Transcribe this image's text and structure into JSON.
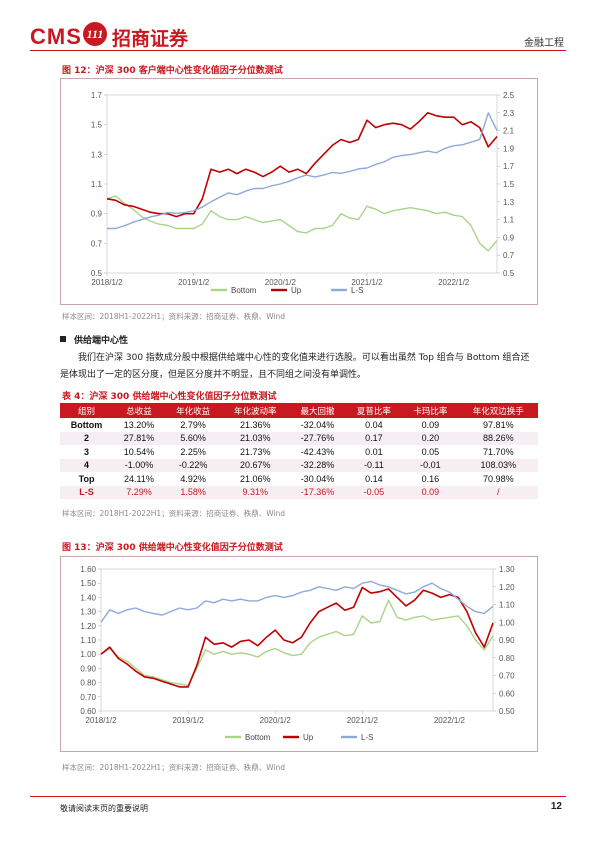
{
  "header": {
    "logo_cms": "CMS",
    "logo_seal": "111",
    "logo_cn": "招商证券",
    "right": "金融工程"
  },
  "fig12": {
    "title": "图 12：沪深 300 客户端中心性变化值因子分位数测试",
    "source": "样本区间：2018H1-2022H1；资料来源：招商证券、秩鼎、Wind"
  },
  "section": {
    "heading": "供给端中心性",
    "paragraph": "我们在沪深 300 指数成分股中根据供给端中心性的变化值来进行选股。可以看出虽然 Top 组合与 Bottom 组合还是体现出了一定的区分度，但是区分度并不明显，且不同组之间没有单调性。"
  },
  "table4": {
    "title": "表 4：沪深 300 供给端中心性变化值因子分位数测试",
    "headers": [
      "组别",
      "总收益",
      "年化收益",
      "年化波动率",
      "最大回撤",
      "夏普比率",
      "卡玛比率",
      "年化双边换手"
    ],
    "rows": [
      [
        "Bottom",
        "13.20%",
        "2.79%",
        "21.36%",
        "-32.04%",
        "0.04",
        "0.09",
        "97.81%"
      ],
      [
        "2",
        "27.81%",
        "5.60%",
        "21.03%",
        "-27.76%",
        "0.17",
        "0.20",
        "88.26%"
      ],
      [
        "3",
        "10.54%",
        "2.25%",
        "21.73%",
        "-42.43%",
        "0.01",
        "0.05",
        "71.70%"
      ],
      [
        "4",
        "-1.00%",
        "-0.22%",
        "20.67%",
        "-32.28%",
        "-0.11",
        "-0.01",
        "108.03%"
      ],
      [
        "Top",
        "24.11%",
        "4.92%",
        "21.06%",
        "-30.04%",
        "0.14",
        "0.16",
        "70.98%"
      ],
      [
        "L-S",
        "7.29%",
        "1.58%",
        "9.31%",
        "-17.36%",
        "-0.05",
        "0.09",
        "/"
      ]
    ],
    "source": "样本区间：2018H1-2022H1；资料来源：招商证券、秩鼎、Wind"
  },
  "fig13": {
    "title": "图 13：沪深 300 供给端中心性变化值因子分位数测试",
    "source": "样本区间：2018H1-2022H1；资料来源：招商证券、秩鼎、Wind"
  },
  "footer": {
    "left": "敬请阅读末页的重要说明",
    "page": "12"
  },
  "colors": {
    "bottom": "#a8d48a",
    "up": "#c00000",
    "ls": "#8fa9dc",
    "accent": "#c9181f"
  },
  "chart_data": [
    {
      "id": "fig12",
      "type": "line",
      "x_ticks": [
        "2018/1/2",
        "2019/1/2",
        "2020/1/2",
        "2021/1/2",
        "2022/1/2"
      ],
      "x_range": [
        2018.0,
        2022.5
      ],
      "y_left": {
        "range": [
          0.5,
          1.7
        ],
        "ticks": [
          "0.5",
          "0.7",
          "0.9",
          "1.1",
          "1.3",
          "1.5",
          "1.7"
        ]
      },
      "y_right": {
        "range": [
          0.5,
          2.5
        ],
        "ticks": [
          "0.5",
          "0.7",
          "0.9",
          "1.1",
          "1.3",
          "1.5",
          "1.7",
          "1.9",
          "2.1",
          "2.3",
          "2.5"
        ]
      },
      "legend": "bottom",
      "series": [
        {
          "name": "Bottom",
          "axis": "left",
          "color": "#a8d48a",
          "x": [
            2018.0,
            2018.1,
            2018.2,
            2018.3,
            2018.4,
            2018.5,
            2018.6,
            2018.7,
            2018.8,
            2018.9,
            2019.0,
            2019.1,
            2019.2,
            2019.3,
            2019.4,
            2019.5,
            2019.6,
            2019.7,
            2019.8,
            2019.9,
            2020.0,
            2020.1,
            2020.2,
            2020.3,
            2020.4,
            2020.5,
            2020.6,
            2020.7,
            2020.8,
            2020.9,
            2021.0,
            2021.1,
            2021.2,
            2021.3,
            2021.4,
            2021.5,
            2021.6,
            2021.7,
            2021.8,
            2021.9,
            2022.0,
            2022.1,
            2022.2,
            2022.3,
            2022.4,
            2022.5
          ],
          "y": [
            1.0,
            1.02,
            0.97,
            0.93,
            0.88,
            0.85,
            0.83,
            0.82,
            0.8,
            0.8,
            0.8,
            0.83,
            0.92,
            0.88,
            0.86,
            0.86,
            0.88,
            0.86,
            0.84,
            0.85,
            0.86,
            0.82,
            0.78,
            0.77,
            0.8,
            0.8,
            0.82,
            0.9,
            0.87,
            0.86,
            0.95,
            0.93,
            0.9,
            0.92,
            0.93,
            0.94,
            0.93,
            0.92,
            0.9,
            0.91,
            0.89,
            0.88,
            0.82,
            0.7,
            0.65,
            0.72
          ]
        },
        {
          "name": "Up",
          "axis": "left",
          "color": "#c00000",
          "x": [
            2018.0,
            2018.1,
            2018.2,
            2018.3,
            2018.4,
            2018.5,
            2018.6,
            2018.7,
            2018.8,
            2018.9,
            2019.0,
            2019.1,
            2019.2,
            2019.3,
            2019.4,
            2019.5,
            2019.6,
            2019.7,
            2019.8,
            2019.9,
            2020.0,
            2020.1,
            2020.2,
            2020.3,
            2020.4,
            2020.5,
            2020.6,
            2020.7,
            2020.8,
            2020.9,
            2021.0,
            2021.1,
            2021.2,
            2021.3,
            2021.4,
            2021.5,
            2021.6,
            2021.7,
            2021.8,
            2021.9,
            2022.0,
            2022.1,
            2022.2,
            2022.3,
            2022.4,
            2022.5
          ],
          "y": [
            1.0,
            0.99,
            0.96,
            0.95,
            0.93,
            0.91,
            0.9,
            0.9,
            0.88,
            0.9,
            0.9,
            1.0,
            1.2,
            1.18,
            1.2,
            1.17,
            1.2,
            1.18,
            1.15,
            1.18,
            1.22,
            1.18,
            1.2,
            1.17,
            1.24,
            1.3,
            1.36,
            1.4,
            1.38,
            1.4,
            1.53,
            1.48,
            1.5,
            1.51,
            1.5,
            1.47,
            1.52,
            1.58,
            1.56,
            1.55,
            1.55,
            1.5,
            1.52,
            1.48,
            1.35,
            1.42
          ]
        },
        {
          "name": "L-S",
          "axis": "right",
          "color": "#8fa9dc",
          "x": [
            2018.0,
            2018.1,
            2018.2,
            2018.3,
            2018.4,
            2018.5,
            2018.6,
            2018.7,
            2018.8,
            2018.9,
            2019.0,
            2019.1,
            2019.2,
            2019.3,
            2019.4,
            2019.5,
            2019.6,
            2019.7,
            2019.8,
            2019.9,
            2020.0,
            2020.1,
            2020.2,
            2020.3,
            2020.4,
            2020.5,
            2020.6,
            2020.7,
            2020.8,
            2020.9,
            2021.0,
            2021.1,
            2021.2,
            2021.3,
            2021.4,
            2021.5,
            2021.6,
            2021.7,
            2021.8,
            2021.9,
            2022.0,
            2022.1,
            2022.2,
            2022.3,
            2022.4,
            2022.5
          ],
          "y": [
            1.0,
            1.0,
            1.03,
            1.07,
            1.1,
            1.13,
            1.15,
            1.18,
            1.17,
            1.18,
            1.2,
            1.24,
            1.3,
            1.35,
            1.4,
            1.38,
            1.42,
            1.45,
            1.45,
            1.48,
            1.5,
            1.53,
            1.57,
            1.6,
            1.58,
            1.6,
            1.63,
            1.62,
            1.64,
            1.67,
            1.68,
            1.72,
            1.75,
            1.8,
            1.82,
            1.83,
            1.85,
            1.87,
            1.85,
            1.9,
            1.93,
            1.94,
            1.97,
            2.0,
            2.3,
            2.1
          ]
        }
      ]
    },
    {
      "id": "fig13",
      "type": "line",
      "x_ticks": [
        "2018/1/2",
        "2019/1/2",
        "2020/1/2",
        "2021/1/2",
        "2022/1/2"
      ],
      "x_range": [
        2018.0,
        2022.5
      ],
      "y_left": {
        "range": [
          0.6,
          1.6
        ],
        "ticks": [
          "0.60",
          "0.70",
          "0.80",
          "0.90",
          "1.00",
          "1.10",
          "1.20",
          "1.30",
          "1.40",
          "1.50",
          "1.60"
        ]
      },
      "y_right": {
        "range": [
          0.5,
          1.3
        ],
        "ticks": [
          "0.50",
          "0.60",
          "0.70",
          "0.80",
          "0.90",
          "1.00",
          "1.10",
          "1.20",
          "1.30"
        ]
      },
      "legend": "bottom",
      "series": [
        {
          "name": "Bottom",
          "axis": "left",
          "color": "#a8d48a",
          "x": [
            2018.0,
            2018.1,
            2018.2,
            2018.3,
            2018.4,
            2018.5,
            2018.6,
            2018.7,
            2018.8,
            2018.9,
            2019.0,
            2019.1,
            2019.2,
            2019.3,
            2019.4,
            2019.5,
            2019.6,
            2019.7,
            2019.8,
            2019.9,
            2020.0,
            2020.1,
            2020.2,
            2020.3,
            2020.4,
            2020.5,
            2020.6,
            2020.7,
            2020.8,
            2020.9,
            2021.0,
            2021.1,
            2021.2,
            2021.3,
            2021.4,
            2021.5,
            2021.6,
            2021.7,
            2021.8,
            2021.9,
            2022.0,
            2022.1,
            2022.2,
            2022.3,
            2022.4,
            2022.5
          ],
          "y": [
            1.0,
            1.04,
            0.98,
            0.95,
            0.9,
            0.85,
            0.84,
            0.82,
            0.8,
            0.79,
            0.78,
            0.9,
            1.03,
            1.0,
            1.02,
            1.0,
            1.01,
            1.0,
            0.98,
            1.02,
            1.04,
            1.01,
            0.99,
            1.0,
            1.08,
            1.12,
            1.14,
            1.16,
            1.13,
            1.14,
            1.27,
            1.22,
            1.23,
            1.38,
            1.26,
            1.24,
            1.26,
            1.27,
            1.24,
            1.25,
            1.26,
            1.27,
            1.2,
            1.1,
            1.03,
            1.13
          ]
        },
        {
          "name": "Up",
          "axis": "left",
          "color": "#c00000",
          "x": [
            2018.0,
            2018.1,
            2018.2,
            2018.3,
            2018.4,
            2018.5,
            2018.6,
            2018.7,
            2018.8,
            2018.9,
            2019.0,
            2019.1,
            2019.2,
            2019.3,
            2019.4,
            2019.5,
            2019.6,
            2019.7,
            2019.8,
            2019.9,
            2020.0,
            2020.1,
            2020.2,
            2020.3,
            2020.4,
            2020.5,
            2020.6,
            2020.7,
            2020.8,
            2020.9,
            2021.0,
            2021.1,
            2021.2,
            2021.3,
            2021.4,
            2021.5,
            2021.6,
            2021.7,
            2021.8,
            2021.9,
            2022.0,
            2022.1,
            2022.2,
            2022.3,
            2022.4,
            2022.5
          ],
          "y": [
            1.0,
            1.05,
            0.97,
            0.93,
            0.88,
            0.84,
            0.83,
            0.81,
            0.79,
            0.77,
            0.77,
            0.92,
            1.12,
            1.07,
            1.08,
            1.05,
            1.09,
            1.1,
            1.06,
            1.12,
            1.17,
            1.1,
            1.08,
            1.12,
            1.22,
            1.3,
            1.33,
            1.36,
            1.31,
            1.33,
            1.47,
            1.43,
            1.44,
            1.46,
            1.4,
            1.34,
            1.38,
            1.45,
            1.43,
            1.4,
            1.42,
            1.4,
            1.3,
            1.15,
            1.05,
            1.22
          ]
        },
        {
          "name": "L-S",
          "axis": "right",
          "color": "#8fa9dc",
          "x": [
            2018.0,
            2018.1,
            2018.2,
            2018.3,
            2018.4,
            2018.5,
            2018.6,
            2018.7,
            2018.8,
            2018.9,
            2019.0,
            2019.1,
            2019.2,
            2019.3,
            2019.4,
            2019.5,
            2019.6,
            2019.7,
            2019.8,
            2019.9,
            2020.0,
            2020.1,
            2020.2,
            2020.3,
            2020.4,
            2020.5,
            2020.6,
            2020.7,
            2020.8,
            2020.9,
            2021.0,
            2021.1,
            2021.2,
            2021.3,
            2021.4,
            2021.5,
            2021.6,
            2021.7,
            2021.8,
            2021.9,
            2022.0,
            2022.1,
            2022.2,
            2022.3,
            2022.4,
            2022.5
          ],
          "y": [
            1.0,
            1.07,
            1.05,
            1.07,
            1.08,
            1.06,
            1.05,
            1.04,
            1.06,
            1.08,
            1.07,
            1.08,
            1.12,
            1.11,
            1.13,
            1.12,
            1.13,
            1.12,
            1.12,
            1.14,
            1.15,
            1.14,
            1.15,
            1.17,
            1.18,
            1.2,
            1.19,
            1.18,
            1.2,
            1.19,
            1.22,
            1.23,
            1.21,
            1.2,
            1.18,
            1.16,
            1.17,
            1.2,
            1.22,
            1.19,
            1.17,
            1.13,
            1.09,
            1.06,
            1.05,
            1.09
          ]
        }
      ]
    }
  ]
}
